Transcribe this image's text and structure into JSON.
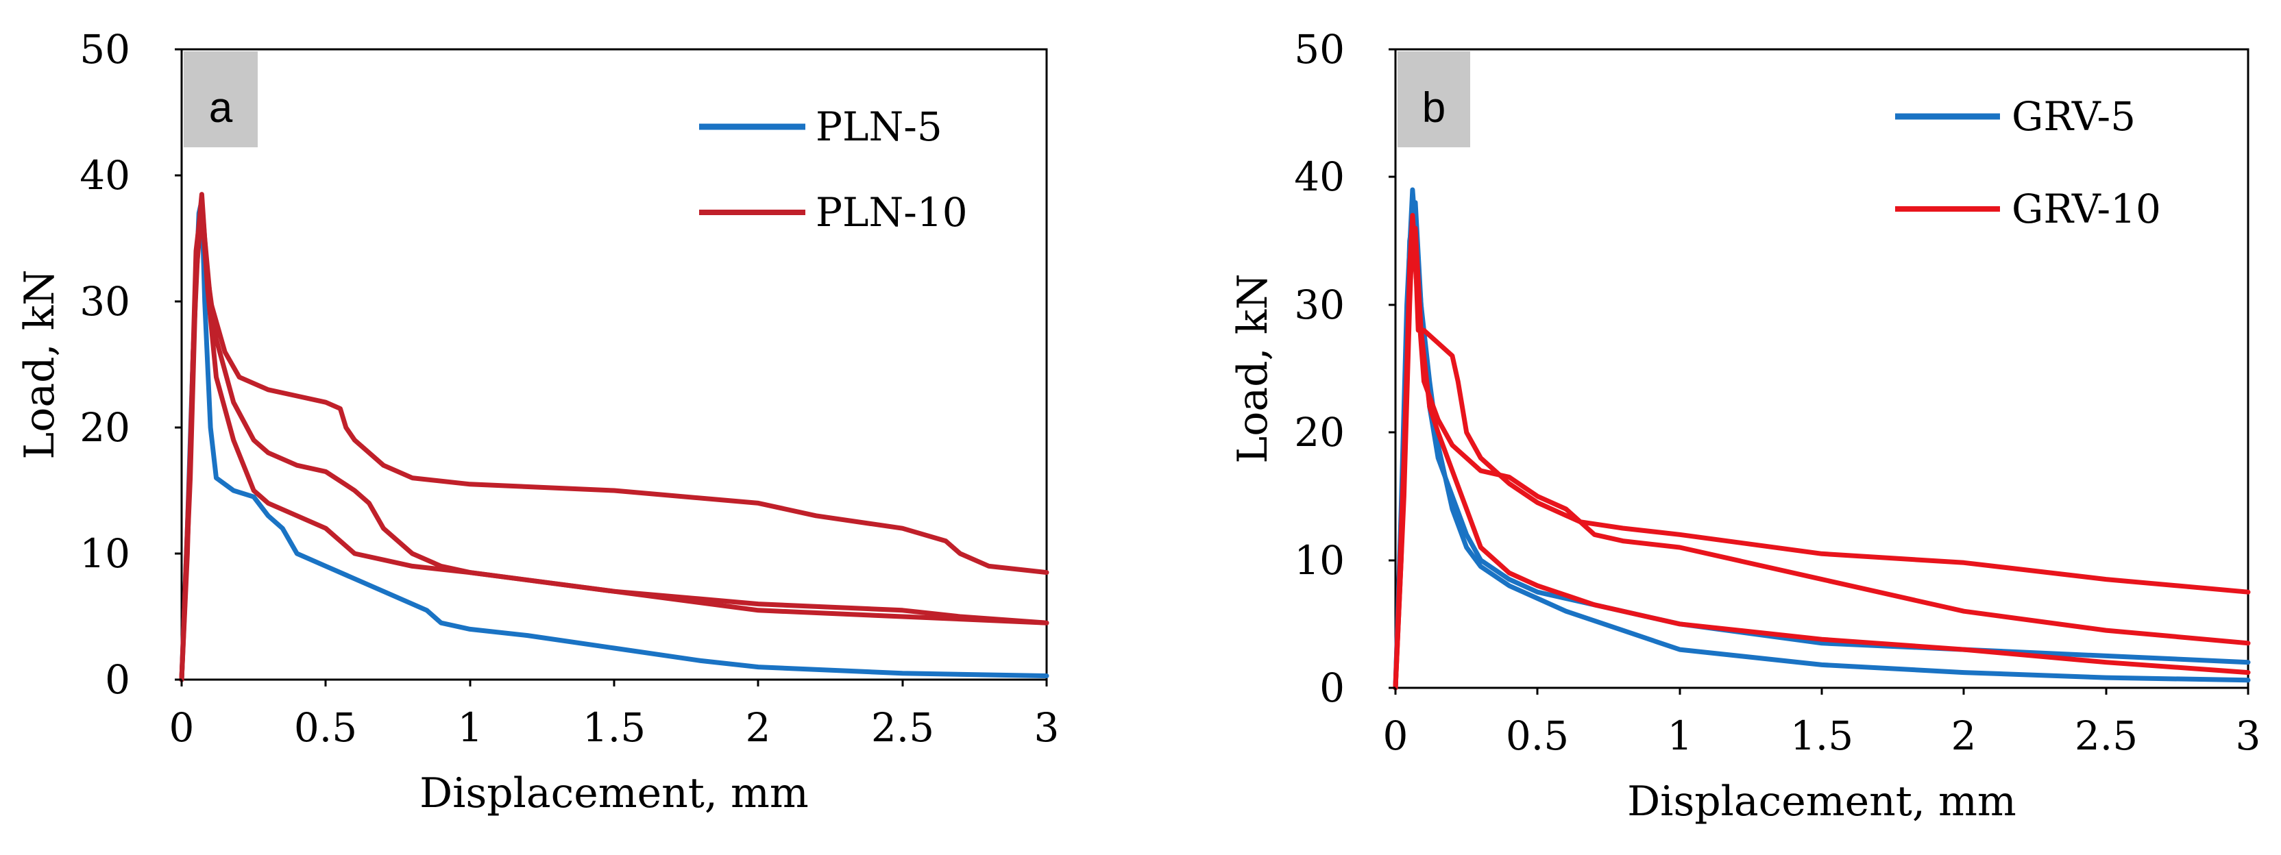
{
  "chart_data": [
    {
      "type": "line",
      "panel_label": "a",
      "xlabel": "Displacement, mm",
      "ylabel": "Load, kN",
      "xlim": [
        0,
        3
      ],
      "ylim": [
        0,
        50
      ],
      "x_ticks": [
        0,
        0.5,
        1,
        1.5,
        2,
        2.5,
        3
      ],
      "x_tick_labels": [
        "0",
        "0.5",
        "1",
        "1.5",
        "2",
        "2.5",
        "3"
      ],
      "y_ticks": [
        0,
        10,
        20,
        30,
        40,
        50
      ],
      "y_tick_labels": [
        "0",
        "10",
        "20",
        "30",
        "40",
        "50"
      ],
      "legend_position": "top-right",
      "legend": [
        {
          "name": "PLN-5",
          "color": "#1a73c4"
        },
        {
          "name": "PLN-10",
          "color": "#c0202a"
        }
      ],
      "series": [
        {
          "name": "PLN-5",
          "color": "#1a73c4",
          "points": [
            [
              0,
              0
            ],
            [
              0.02,
              12
            ],
            [
              0.04,
              26
            ],
            [
              0.06,
              37
            ],
            [
              0.07,
              38
            ],
            [
              0.08,
              30
            ],
            [
              0.1,
              20
            ],
            [
              0.12,
              16
            ],
            [
              0.18,
              15
            ],
            [
              0.25,
              14.5
            ],
            [
              0.3,
              13
            ],
            [
              0.35,
              12
            ],
            [
              0.4,
              10
            ],
            [
              0.5,
              9
            ],
            [
              0.6,
              8
            ],
            [
              0.7,
              7
            ],
            [
              0.8,
              6
            ],
            [
              0.85,
              5.5
            ],
            [
              0.9,
              4.5
            ],
            [
              1,
              4
            ],
            [
              1.2,
              3.5
            ],
            [
              1.5,
              2.5
            ],
            [
              1.8,
              1.5
            ],
            [
              2,
              1
            ],
            [
              2.5,
              0.5
            ],
            [
              3,
              0.3
            ]
          ]
        },
        {
          "name": "PLN-10",
          "color": "#c0202a",
          "points": [
            [
              0,
              0
            ],
            [
              0.02,
              10
            ],
            [
              0.04,
              26
            ],
            [
              0.06,
              36
            ],
            [
              0.07,
              38.5
            ],
            [
              0.08,
              35
            ],
            [
              0.1,
              30
            ],
            [
              0.15,
              26
            ],
            [
              0.2,
              24
            ],
            [
              0.3,
              23
            ],
            [
              0.4,
              22.5
            ],
            [
              0.5,
              22
            ],
            [
              0.55,
              21.5
            ],
            [
              0.57,
              20
            ],
            [
              0.6,
              19
            ],
            [
              0.65,
              18
            ],
            [
              0.7,
              17
            ],
            [
              0.8,
              16
            ],
            [
              1,
              15.5
            ],
            [
              1.5,
              15
            ],
            [
              2,
              14
            ],
            [
              2.2,
              13
            ],
            [
              2.5,
              12
            ],
            [
              2.65,
              11
            ],
            [
              2.7,
              10
            ],
            [
              2.8,
              9
            ],
            [
              3,
              8.5
            ]
          ]
        },
        {
          "name": "PLN-10",
          "color": "#c0202a",
          "points": [
            [
              0,
              0
            ],
            [
              0.03,
              18
            ],
            [
              0.05,
              34
            ],
            [
              0.07,
              38
            ],
            [
              0.09,
              32
            ],
            [
              0.12,
              27
            ],
            [
              0.18,
              22
            ],
            [
              0.25,
              19
            ],
            [
              0.3,
              18
            ],
            [
              0.4,
              17
            ],
            [
              0.5,
              16.5
            ],
            [
              0.6,
              15
            ],
            [
              0.65,
              14
            ],
            [
              0.7,
              12
            ],
            [
              0.75,
              11
            ],
            [
              0.8,
              10
            ],
            [
              0.9,
              9
            ],
            [
              1,
              8.5
            ],
            [
              1.5,
              7
            ],
            [
              2,
              6
            ],
            [
              2.5,
              5.5
            ],
            [
              2.7,
              5
            ],
            [
              3,
              4.5
            ]
          ]
        },
        {
          "name": "PLN-10",
          "color": "#c0202a",
          "points": [
            [
              0,
              0
            ],
            [
              0.03,
              16
            ],
            [
              0.05,
              32
            ],
            [
              0.07,
              37.5
            ],
            [
              0.09,
              31
            ],
            [
              0.12,
              24
            ],
            [
              0.18,
              19
            ],
            [
              0.25,
              15
            ],
            [
              0.3,
              14
            ],
            [
              0.4,
              13
            ],
            [
              0.5,
              12
            ],
            [
              0.55,
              11
            ],
            [
              0.6,
              10
            ],
            [
              0.7,
              9.5
            ],
            [
              0.8,
              9
            ],
            [
              1,
              8.5
            ],
            [
              1.5,
              7
            ],
            [
              2,
              5.5
            ],
            [
              2.5,
              5
            ],
            [
              3,
              4.5
            ]
          ]
        }
      ]
    },
    {
      "type": "line",
      "panel_label": "b",
      "xlabel": "Displacement, mm",
      "ylabel": "Load, kN",
      "xlim": [
        0,
        3
      ],
      "ylim": [
        0,
        50
      ],
      "x_ticks": [
        0,
        0.5,
        1,
        1.5,
        2,
        2.5,
        3
      ],
      "x_tick_labels": [
        "0",
        "0.5",
        "1",
        "1.5",
        "2",
        "2.5",
        "3"
      ],
      "y_ticks": [
        0,
        10,
        20,
        30,
        40,
        50
      ],
      "y_tick_labels": [
        "0",
        "10",
        "20",
        "30",
        "40",
        "50"
      ],
      "legend_position": "top-right",
      "legend": [
        {
          "name": "GRV-5",
          "color": "#1a73c4"
        },
        {
          "name": "GRV-10",
          "color": "#e8141c"
        }
      ],
      "series": [
        {
          "name": "GRV-5",
          "color": "#1a73c4",
          "points": [
            [
              0,
              0
            ],
            [
              0.02,
              14
            ],
            [
              0.04,
              30
            ],
            [
              0.06,
              39
            ],
            [
              0.07,
              36
            ],
            [
              0.09,
              30
            ],
            [
              0.12,
              22
            ],
            [
              0.15,
              18
            ],
            [
              0.2,
              15
            ],
            [
              0.25,
              12
            ],
            [
              0.3,
              10
            ],
            [
              0.4,
              8.5
            ],
            [
              0.5,
              7.5
            ],
            [
              0.7,
              6.5
            ],
            [
              1,
              5
            ],
            [
              1.5,
              3.5
            ],
            [
              2,
              3
            ],
            [
              2.5,
              2.5
            ],
            [
              3,
              2
            ]
          ]
        },
        {
          "name": "GRV-5",
          "color": "#1a73c4",
          "points": [
            [
              0,
              0
            ],
            [
              0.03,
              20
            ],
            [
              0.05,
              35
            ],
            [
              0.07,
              38
            ],
            [
              0.09,
              30
            ],
            [
              0.12,
              24
            ],
            [
              0.15,
              19
            ],
            [
              0.2,
              14
            ],
            [
              0.25,
              11
            ],
            [
              0.3,
              9.5
            ],
            [
              0.4,
              8
            ],
            [
              0.5,
              7
            ],
            [
              0.6,
              6
            ],
            [
              0.8,
              4.5
            ],
            [
              1,
              3
            ],
            [
              1.5,
              1.8
            ],
            [
              2,
              1.2
            ],
            [
              2.5,
              0.8
            ],
            [
              3,
              0.6
            ]
          ]
        },
        {
          "name": "GRV-10",
          "color": "#e8141c",
          "points": [
            [
              0,
              0
            ],
            [
              0.02,
              10
            ],
            [
              0.04,
              25
            ],
            [
              0.05,
              33
            ],
            [
              0.06,
              37
            ],
            [
              0.07,
              34
            ],
            [
              0.08,
              28
            ],
            [
              0.1,
              28
            ],
            [
              0.15,
              27
            ],
            [
              0.2,
              26
            ],
            [
              0.22,
              24
            ],
            [
              0.25,
              20
            ],
            [
              0.3,
              18
            ],
            [
              0.4,
              16
            ],
            [
              0.5,
              14.5
            ],
            [
              0.6,
              13.5
            ],
            [
              0.65,
              13
            ],
            [
              0.8,
              12.5
            ],
            [
              1,
              12
            ],
            [
              1.5,
              10.5
            ],
            [
              2,
              9.8
            ],
            [
              2.5,
              8.5
            ],
            [
              3,
              7.5
            ]
          ]
        },
        {
          "name": "GRV-10",
          "color": "#e8141c",
          "points": [
            [
              0,
              0
            ],
            [
              0.03,
              15
            ],
            [
              0.05,
              30
            ],
            [
              0.06,
              36
            ],
            [
              0.08,
              30
            ],
            [
              0.1,
              24
            ],
            [
              0.15,
              21
            ],
            [
              0.2,
              19
            ],
            [
              0.25,
              18
            ],
            [
              0.3,
              17
            ],
            [
              0.4,
              16.5
            ],
            [
              0.5,
              15
            ],
            [
              0.6,
              14
            ],
            [
              0.7,
              12
            ],
            [
              0.8,
              11.5
            ],
            [
              1,
              11
            ],
            [
              1.2,
              10
            ],
            [
              1.5,
              8.5
            ],
            [
              1.7,
              7.5
            ],
            [
              2,
              6
            ],
            [
              2.5,
              4.5
            ],
            [
              3,
              3.5
            ]
          ]
        },
        {
          "name": "GRV-10",
          "color": "#e8141c",
          "points": [
            [
              0,
              0
            ],
            [
              0.03,
              18
            ],
            [
              0.05,
              32
            ],
            [
              0.07,
              36
            ],
            [
              0.09,
              28
            ],
            [
              0.12,
              22
            ],
            [
              0.15,
              20
            ],
            [
              0.2,
              17
            ],
            [
              0.25,
              14
            ],
            [
              0.3,
              11
            ],
            [
              0.4,
              9
            ],
            [
              0.5,
              8
            ],
            [
              0.7,
              6.5
            ],
            [
              1,
              5
            ],
            [
              1.5,
              3.8
            ],
            [
              2,
              3
            ],
            [
              2.5,
              2
            ],
            [
              3,
              1.2
            ]
          ]
        }
      ]
    }
  ]
}
